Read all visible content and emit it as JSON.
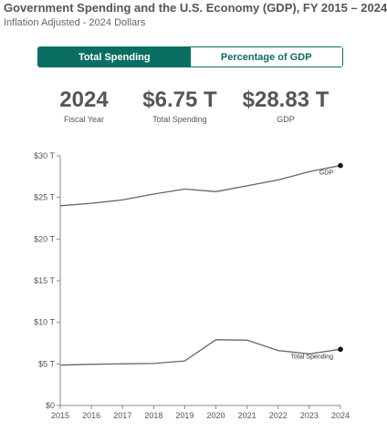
{
  "header": {
    "title": "Government Spending and the U.S. Economy (GDP), FY 2015 – 2024",
    "subtitle": "Inflation Adjusted - 2024 Dollars"
  },
  "toggle": {
    "options": [
      {
        "label": "Total Spending",
        "active": true
      },
      {
        "label": "Percentage of GDP",
        "active": false
      }
    ]
  },
  "stats": [
    {
      "value": "2024",
      "label": "Fiscal Year"
    },
    {
      "value": "$6.75 T",
      "label": "Total Spending"
    },
    {
      "value": "$28.83 T",
      "label": "GDP"
    }
  ],
  "colors": {
    "accent": "#0b6e62",
    "line": "#666666",
    "endpoint": "#111111"
  },
  "chart_data": {
    "type": "line",
    "x": [
      2015,
      2016,
      2017,
      2018,
      2019,
      2020,
      2021,
      2022,
      2023,
      2024
    ],
    "x_tick_labels": [
      "2015",
      "2016",
      "2017",
      "2018",
      "2019",
      "2020",
      "2021",
      "2022",
      "2023",
      "2024"
    ],
    "y_ticks": [
      0,
      5,
      10,
      15,
      20,
      25,
      30
    ],
    "y_tick_labels": [
      "$0",
      "$5 T",
      "$10 T",
      "$15 T",
      "$20 T",
      "$25 T",
      "$30 T"
    ],
    "ylim": [
      0,
      30
    ],
    "grid": false,
    "series": [
      {
        "name": "GDP",
        "values": [
          24.0,
          24.3,
          24.7,
          25.4,
          26.0,
          25.7,
          26.4,
          27.1,
          28.1,
          28.83
        ]
      },
      {
        "name": "Total Spending",
        "values": [
          4.85,
          4.95,
          5.0,
          5.05,
          5.35,
          7.9,
          7.85,
          6.6,
          6.2,
          6.75
        ]
      }
    ]
  }
}
